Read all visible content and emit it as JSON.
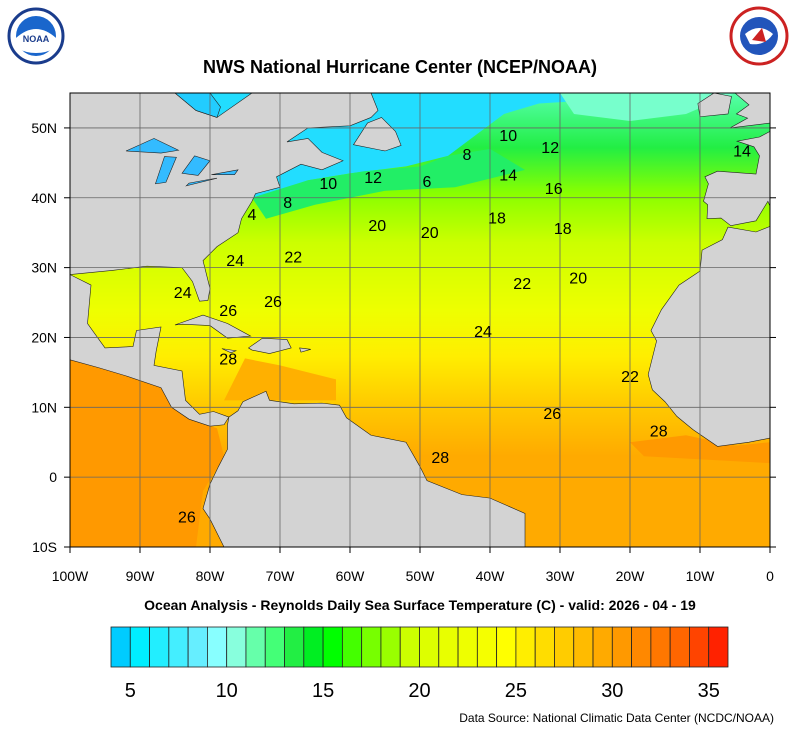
{
  "header": {
    "title": "NWS National Hurricane Center (NCEP/NOAA)",
    "left_logo": "NOAA",
    "right_logo": "NATIONAL WEATHER SERVICE"
  },
  "map": {
    "subtitle": "Ocean Analysis - Reynolds Daily Sea Surface Temperature (C) - valid: 2026 - 04 - 19",
    "extent": {
      "lon": [
        -100,
        0
      ],
      "lat": [
        -10,
        55
      ]
    },
    "lon_ticks": [
      {
        "value": -100,
        "label": "100W"
      },
      {
        "value": -90,
        "label": "90W"
      },
      {
        "value": -80,
        "label": "80W"
      },
      {
        "value": -70,
        "label": "70W"
      },
      {
        "value": -60,
        "label": "60W"
      },
      {
        "value": -50,
        "label": "50W"
      },
      {
        "value": -40,
        "label": "40W"
      },
      {
        "value": -30,
        "label": "30W"
      },
      {
        "value": -20,
        "label": "20W"
      },
      {
        "value": -10,
        "label": "10W"
      },
      {
        "value": 0,
        "label": "0"
      }
    ],
    "lat_ticks": [
      {
        "value": 50,
        "label": "50N"
      },
      {
        "value": 40,
        "label": "40N"
      },
      {
        "value": 30,
        "label": "30N"
      },
      {
        "value": 20,
        "label": "20N"
      },
      {
        "value": 10,
        "label": "10N"
      },
      {
        "value": 0,
        "label": "0"
      },
      {
        "value": -10,
        "label": "10S"
      }
    ],
    "land_color": "#d3d3d3",
    "grid": true,
    "contour_labels": [
      {
        "text": "10",
        "lon": -37.4,
        "lat": 49.0
      },
      {
        "text": "12",
        "lon": -31.4,
        "lat": 47.3
      },
      {
        "text": "14",
        "lon": -4,
        "lat": 46.8
      },
      {
        "text": "8",
        "lon": -43.3,
        "lat": 46.3
      },
      {
        "text": "14",
        "lon": -37.4,
        "lat": 43.3
      },
      {
        "text": "16",
        "lon": -30.9,
        "lat": 41.4
      },
      {
        "text": "10",
        "lon": -63.1,
        "lat": 42.1
      },
      {
        "text": "12",
        "lon": -56.7,
        "lat": 43.0
      },
      {
        "text": "6",
        "lon": -49,
        "lat": 42.4
      },
      {
        "text": "8",
        "lon": -68.9,
        "lat": 39.4
      },
      {
        "text": "4",
        "lon": -74,
        "lat": 37.7
      },
      {
        "text": "20",
        "lon": -56.1,
        "lat": 36.1
      },
      {
        "text": "20",
        "lon": -48.6,
        "lat": 35.1
      },
      {
        "text": "18",
        "lon": -39,
        "lat": 37.2
      },
      {
        "text": "18",
        "lon": -29.6,
        "lat": 35.7
      },
      {
        "text": "24",
        "lon": -76.4,
        "lat": 31.1
      },
      {
        "text": "22",
        "lon": -68.1,
        "lat": 31.6
      },
      {
        "text": "22",
        "lon": -35.4,
        "lat": 27.8
      },
      {
        "text": "20",
        "lon": -27.4,
        "lat": 28.6
      },
      {
        "text": "24",
        "lon": -83.9,
        "lat": 26.5
      },
      {
        "text": "26",
        "lon": -77.4,
        "lat": 23.9
      },
      {
        "text": "26",
        "lon": -71,
        "lat": 25.2
      },
      {
        "text": "24",
        "lon": -41,
        "lat": 20.9
      },
      {
        "text": "28",
        "lon": -77.4,
        "lat": 17.0
      },
      {
        "text": "22",
        "lon": -20,
        "lat": 14.5
      },
      {
        "text": "26",
        "lon": -31.1,
        "lat": 9.2
      },
      {
        "text": "28",
        "lon": -15.9,
        "lat": 6.7
      },
      {
        "text": "28",
        "lon": -47.1,
        "lat": 2.9
      },
      {
        "text": "26",
        "lon": -83.3,
        "lat": -5.6
      }
    ]
  },
  "colorbar": {
    "min": 4,
    "max": 36,
    "colors": [
      "#00ccff",
      "#00eeff",
      "#22eeff",
      "#44eeff",
      "#66eeff",
      "#88ffff",
      "#88ffdd",
      "#66ffaa",
      "#44ff77",
      "#22ee44",
      "#00ee22",
      "#00ff00",
      "#44ff00",
      "#77ff00",
      "#99ff00",
      "#ccff00",
      "#ddff00",
      "#e8ff00",
      "#eeff00",
      "#f5ff00",
      "#ffff00",
      "#ffee00",
      "#ffdd00",
      "#ffcc00",
      "#ffbb00",
      "#ffaa00",
      "#ff9900",
      "#ff8800",
      "#ff7700",
      "#ff6600",
      "#ff4400",
      "#ff2200"
    ],
    "tick_labels": [
      {
        "value": 5,
        "label": "5"
      },
      {
        "value": 10,
        "label": "10"
      },
      {
        "value": 15,
        "label": "15"
      },
      {
        "value": 20,
        "label": "20"
      },
      {
        "value": 25,
        "label": "25"
      },
      {
        "value": 30,
        "label": "30"
      },
      {
        "value": 35,
        "label": "35"
      }
    ]
  },
  "footer": {
    "source": "Data Source: National Climatic Data Center (NCDC/NOAA)"
  }
}
